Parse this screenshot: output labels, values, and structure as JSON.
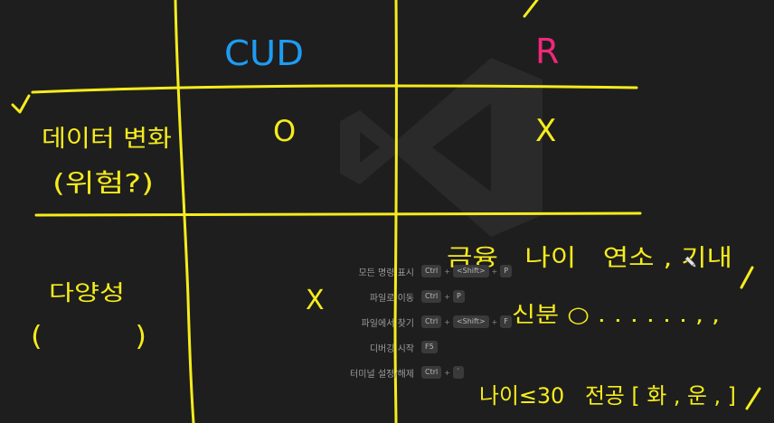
{
  "colors": {
    "background": "#1e1e1e",
    "ink_yellow": "#f5ec1c",
    "ink_blue": "#1f9bf2",
    "ink_pink": "#f0287a",
    "watermark": "#2a2a2a",
    "shortcut_text": "#9b9b9b"
  },
  "watermark": {
    "icon": "vscode-logo-icon"
  },
  "handwriting": {
    "header_cud": "CUD",
    "header_r": "R",
    "row1_label_line1": "데이터 변화",
    "row1_label_line2": "(위험?)",
    "cell_cud_row1": "O",
    "cell_r_row1": "X",
    "row2_label": "다양성",
    "row2_paren": "(          )",
    "cell_cud_row2": "X",
    "note_top": "금융   나이   연소 , 기내",
    "note_middle": "신분 ○ . . . . . . , ,",
    "note_bottom": "나이≤30   전공 [ 화 , 운 , ]",
    "pen_icon": "pen-cursor-icon"
  },
  "shortcuts": [
    {
      "label": "모든 명령 표시",
      "keys": [
        "Ctrl",
        "<Shift>",
        "P"
      ]
    },
    {
      "label": "파일로 이동",
      "keys": [
        "Ctrl",
        "P"
      ]
    },
    {
      "label": "파일에서 찾기",
      "keys": [
        "Ctrl",
        "<Shift>",
        "F"
      ]
    },
    {
      "label": "디버깅 시작",
      "keys": [
        "F5"
      ]
    },
    {
      "label": "터미널 설정/해제",
      "keys": [
        "Ctrl",
        "`"
      ]
    }
  ]
}
